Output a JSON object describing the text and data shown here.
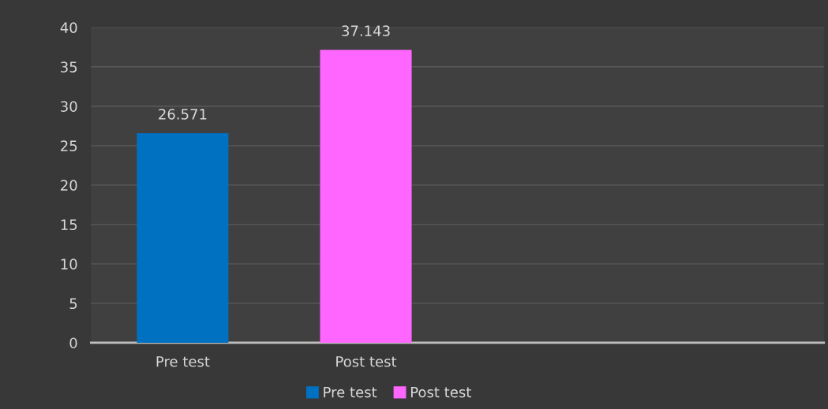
{
  "chart_data": {
    "type": "bar",
    "categories": [
      "Pre test",
      "Post test",
      null,
      null
    ],
    "series": [
      {
        "name": "Pre test",
        "color": "#0070c0",
        "values": [
          26.571,
          null,
          null,
          null
        ]
      },
      {
        "name": "Post test",
        "color": "#ff66ff",
        "values": [
          null,
          37.143,
          null,
          null
        ]
      }
    ],
    "ylim": [
      0,
      40
    ],
    "yticks": [
      0,
      5,
      10,
      15,
      20,
      25,
      30,
      35,
      40
    ],
    "grid": "y",
    "legend": "bottom",
    "data_labels": true
  }
}
